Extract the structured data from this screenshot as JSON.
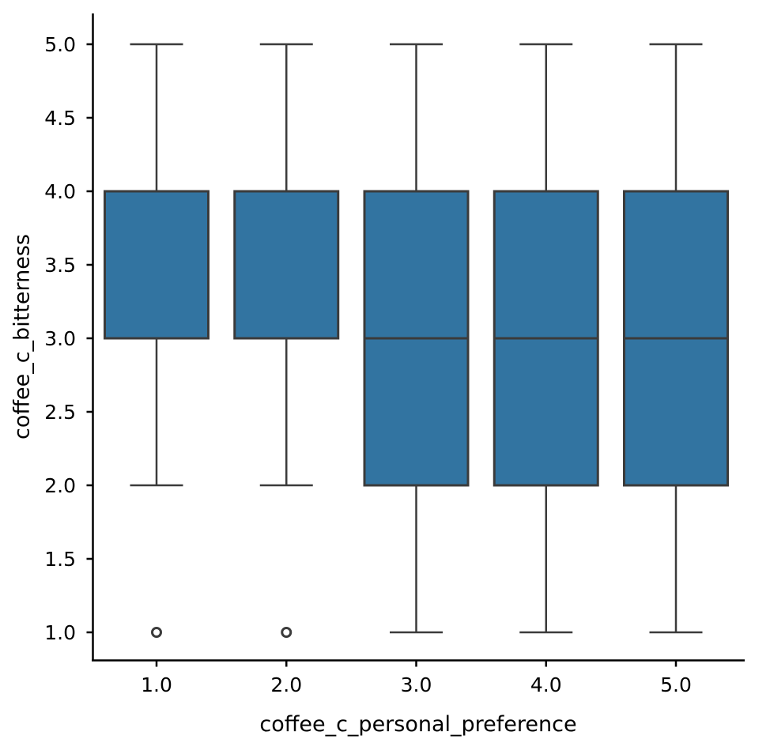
{
  "figure": {
    "background_color": "#ffffff",
    "text_color": "#000000",
    "spine_color": "#000000"
  },
  "chart_data": {
    "type": "box",
    "title": "",
    "xlabel": "coffee_c_personal_preference",
    "ylabel": "coffee_c_bitterness",
    "categories": [
      "1.0",
      "2.0",
      "3.0",
      "4.0",
      "5.0"
    ],
    "y_tick_labels": [
      "1.0",
      "1.5",
      "2.0",
      "2.5",
      "3.0",
      "3.5",
      "4.0",
      "4.5",
      "5.0"
    ],
    "y_tick_values": [
      1.0,
      1.5,
      2.0,
      2.5,
      3.0,
      3.5,
      4.0,
      4.5,
      5.0
    ],
    "ylim": [
      0.79,
      5.21
    ],
    "grid": false,
    "legend": null,
    "box_fill_color": "#3274A1",
    "line_color": "#3B3B3B",
    "outlier_fill_color": "#ffffff",
    "boxes": [
      {
        "category": "1.0",
        "whisker_low": 2.0,
        "q1": 3.0,
        "median": 4.0,
        "q3": 4.0,
        "whisker_high": 5.0,
        "outliers": [
          1.0
        ]
      },
      {
        "category": "2.0",
        "whisker_low": 2.0,
        "q1": 3.0,
        "median": 4.0,
        "q3": 4.0,
        "whisker_high": 5.0,
        "outliers": [
          1.0
        ]
      },
      {
        "category": "3.0",
        "whisker_low": 1.0,
        "q1": 2.0,
        "median": 3.0,
        "q3": 4.0,
        "whisker_high": 5.0,
        "outliers": []
      },
      {
        "category": "4.0",
        "whisker_low": 1.0,
        "q1": 2.0,
        "median": 3.0,
        "q3": 4.0,
        "whisker_high": 5.0,
        "outliers": []
      },
      {
        "category": "5.0",
        "whisker_low": 1.0,
        "q1": 2.0,
        "median": 3.0,
        "q3": 4.0,
        "whisker_high": 5.0,
        "outliers": []
      }
    ]
  }
}
